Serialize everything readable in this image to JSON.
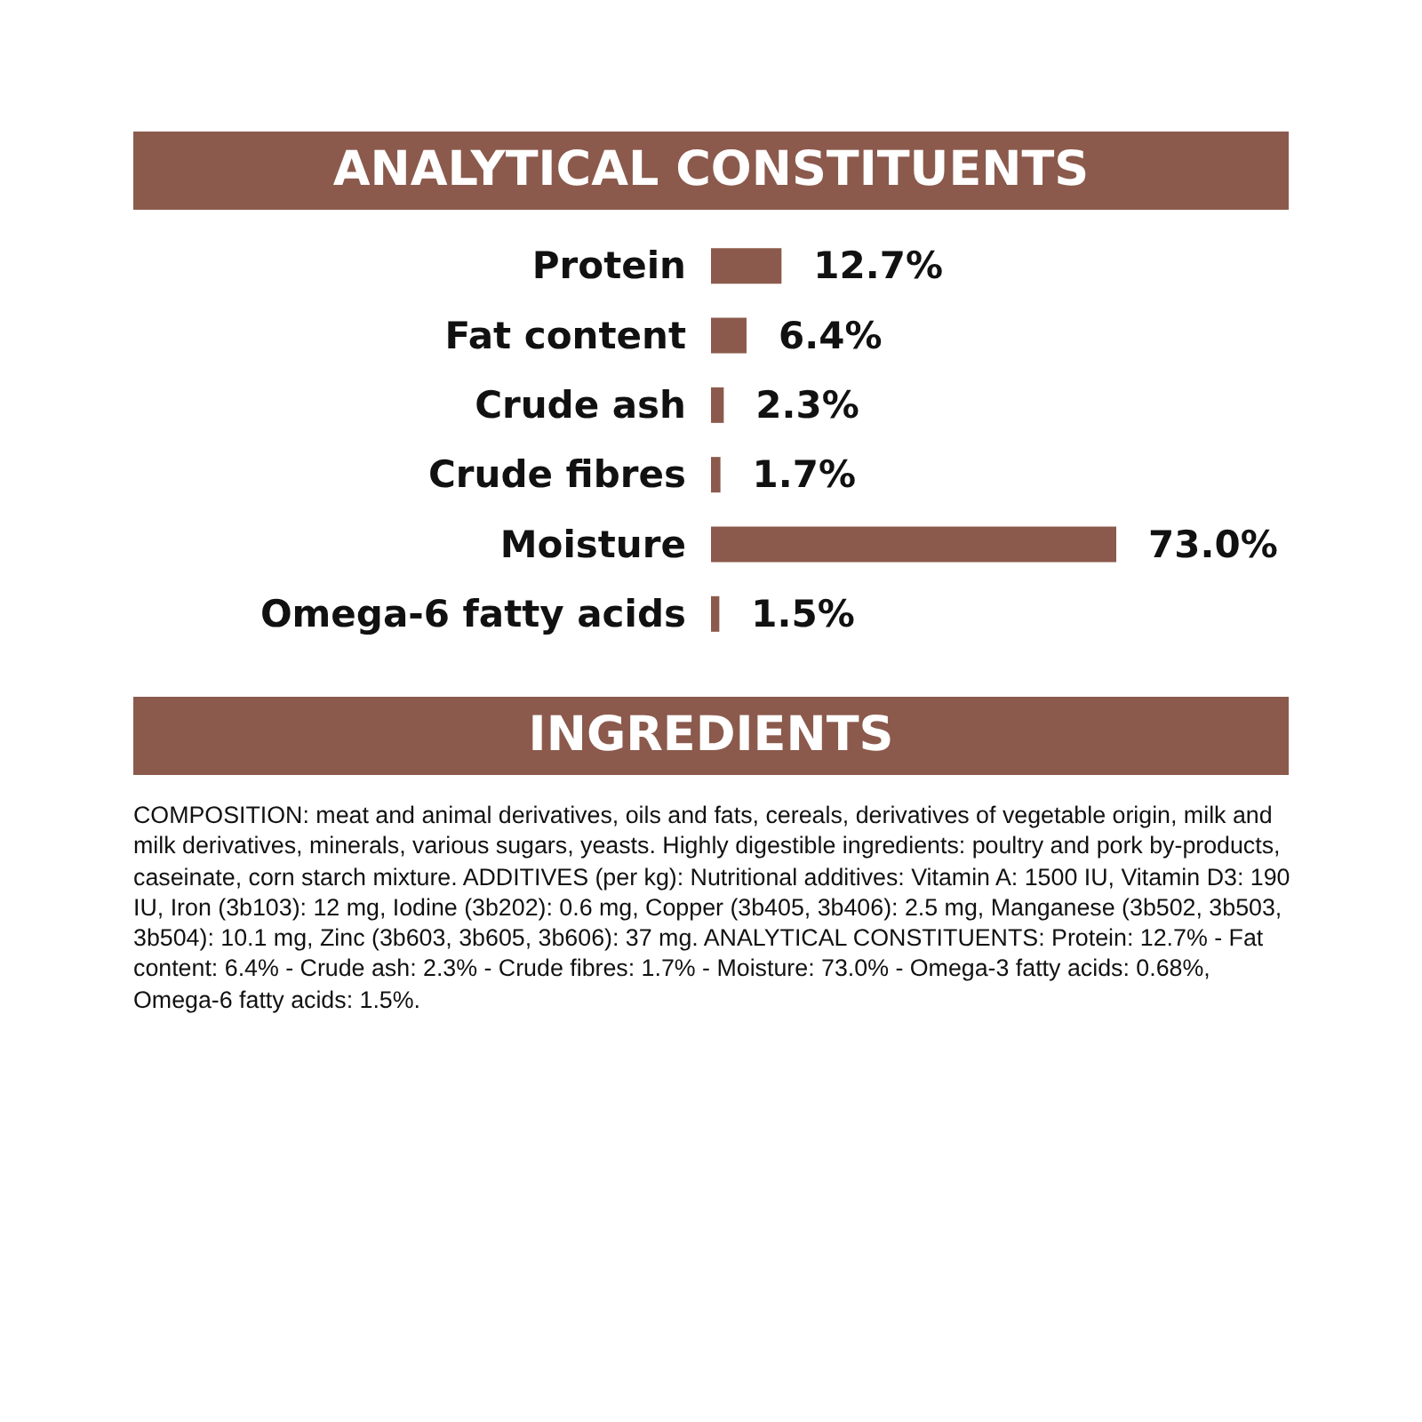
{
  "chart_data": {
    "type": "bar",
    "orientation": "horizontal",
    "title": "ANALYTICAL CONSTITUENTS",
    "categories": [
      "Protein",
      "Fat content",
      "Crude ash",
      "Crude fibres",
      "Moisture",
      "Omega-6 fatty acids"
    ],
    "values": [
      12.7,
      6.4,
      2.3,
      1.7,
      73.0,
      1.5
    ],
    "value_labels": [
      "12.7%",
      "6.4%",
      "2.3%",
      "1.7%",
      "73.0%",
      "1.5%"
    ],
    "color": "#8b5a4c",
    "tick_labels": "y",
    "annotations": [
      "INGREDIENTS",
      "COMPOSITION: meat and animal derivatives, oils and fats, cereals, derivatives of vegetable origin, milk and milk derivatives, minerals, various sugars, yeasts. Highly digestible ingredients: poultry and pork by-products, caseinate, corn starch mixture. ADDITIVES (per kg): Nutritional additives: Vitamin A: 1500 IU, Vitamin D3: 190 IU, Iron (3b103): 12 mg, Iodine (3b202): 0.6 mg, Copper (3b405, 3b406): 2.5 mg, Manganese (3b502, 3b503, 3b504): 10.1 mg, Zinc (3b603, 3b605, 3b606): 37 mg. ANALYTICAL CONSTITUENTS: Protein: 12.7% - Fat content: 6.4% - Crude ash: 2.3% - Crude fibres: 1.7% - Moisture: 73.0% - Omega-3 fatty acids: 0.68%, Omega-6 fatty acids: 1.5%."
    ]
  }
}
